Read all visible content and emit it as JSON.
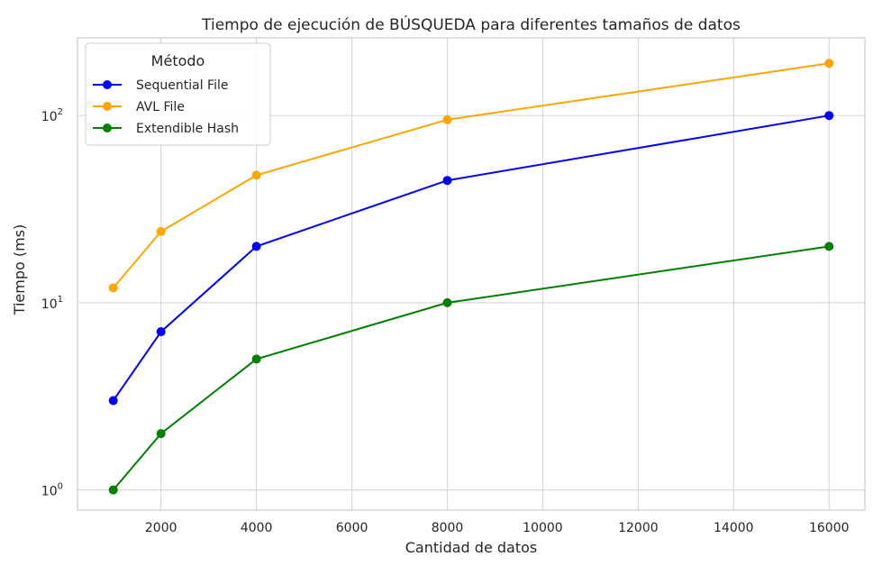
{
  "chart_data": {
    "type": "line",
    "title": "Tiempo de ejecución de BÚSQUEDA para diferentes tamaños de datos",
    "xlabel": "Cantidad de datos",
    "ylabel": "Tiempo (ms)",
    "x": [
      1000,
      2000,
      4000,
      8000,
      16000
    ],
    "xlim": [
      250,
      16750
    ],
    "ylim": [
      0.78,
      260
    ],
    "yscale": "log",
    "grid": true,
    "x_ticks": [
      2000,
      4000,
      6000,
      8000,
      10000,
      12000,
      14000,
      16000
    ],
    "x_tick_labels": [
      "2000",
      "4000",
      "6000",
      "8000",
      "10000",
      "12000",
      "14000",
      "16000"
    ],
    "y_ticks": [
      1,
      10,
      100
    ],
    "y_tick_labels": [
      {
        "base": "10",
        "exp": "0"
      },
      {
        "base": "10",
        "exp": "1"
      },
      {
        "base": "10",
        "exp": "2"
      }
    ],
    "legend": {
      "title": "Método",
      "placement": "top-left"
    },
    "series": [
      {
        "name": "Sequential File",
        "color": "#0000ff",
        "values": [
          3,
          7,
          20,
          45,
          100
        ]
      },
      {
        "name": "AVL File",
        "color": "#ffa500",
        "values": [
          12,
          24,
          48,
          95,
          190
        ]
      },
      {
        "name": "Extendible Hash",
        "color": "#008000",
        "values": [
          1,
          2,
          5,
          10,
          20
        ]
      }
    ]
  }
}
